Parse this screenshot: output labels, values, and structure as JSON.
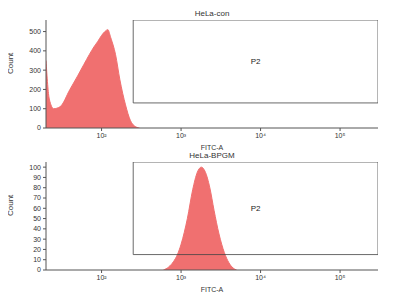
{
  "chart_data": [
    {
      "type": "area",
      "title": "HeLa-con",
      "x_label": "FITC-A",
      "y_label": "Count",
      "x": [
        20,
        22,
        25,
        30,
        40,
        50,
        60,
        70,
        80,
        90,
        100,
        110,
        120,
        130,
        150,
        170,
        200,
        230,
        260,
        300
      ],
      "values": [
        350,
        150,
        100,
        110,
        200,
        270,
        330,
        380,
        420,
        450,
        480,
        500,
        510,
        470,
        380,
        250,
        120,
        40,
        10,
        0
      ],
      "color": "#f07070",
      "log": "x",
      "xlim": [
        20,
        300000
      ],
      "xticks": [
        {
          "value": 100,
          "label": "10²"
        },
        {
          "value": 1000,
          "label": "10³"
        },
        {
          "value": 10000,
          "label": "10⁴"
        },
        {
          "value": 100000,
          "label": "10⁵"
        }
      ],
      "ylim": [
        0,
        560
      ],
      "yticks": [
        0,
        100,
        200,
        300,
        400,
        500
      ],
      "gate": {
        "name": "P2",
        "x": [
          250,
          300000
        ],
        "y": [
          130,
          560
        ]
      }
    },
    {
      "type": "area",
      "title": "HeLa-BPGM",
      "x_label": "FITC-A",
      "y_label": "Count",
      "x": [
        600,
        700,
        800,
        900,
        1000,
        1200,
        1400,
        1600,
        1800,
        2000,
        2300,
        2600,
        3000,
        3500,
        4000,
        4500,
        5000
      ],
      "values": [
        0,
        3,
        8,
        15,
        25,
        50,
        78,
        95,
        100,
        96,
        80,
        58,
        35,
        17,
        7,
        2,
        0
      ],
      "color": "#f07070",
      "log": "x",
      "xlim": [
        20,
        300000
      ],
      "xticks": [
        {
          "value": 100,
          "label": "10²"
        },
        {
          "value": 1000,
          "label": "10³"
        },
        {
          "value": 10000,
          "label": "10⁴"
        },
        {
          "value": 100000,
          "label": "10⁵"
        }
      ],
      "ylim": [
        0,
        105
      ],
      "yticks": [
        0,
        10,
        20,
        30,
        40,
        50,
        60,
        70,
        80,
        90,
        100
      ],
      "gate": {
        "name": "P2",
        "x": [
          250,
          300000
        ],
        "y": [
          15,
          105
        ]
      }
    }
  ]
}
